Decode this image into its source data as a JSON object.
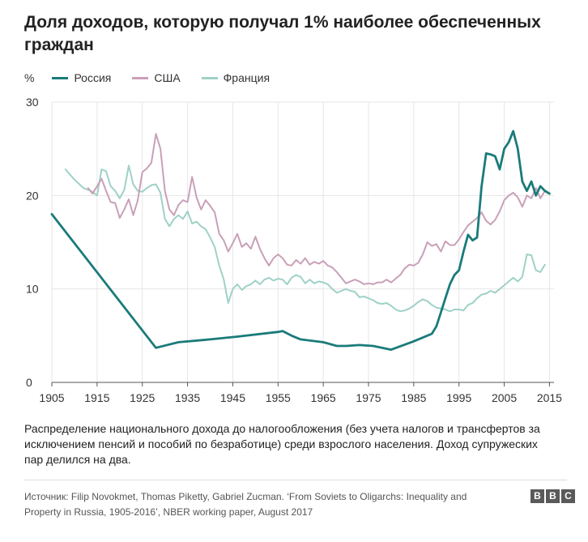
{
  "header": {
    "title": "Доля доходов, которую получал 1% наиболее обеспеченных граждан"
  },
  "chart_data": {
    "type": "line",
    "unit_label": "%",
    "xlim": [
      1905,
      2016
    ],
    "ylim": [
      0,
      30
    ],
    "x_ticks": [
      1905,
      1915,
      1925,
      1935,
      1945,
      1955,
      1965,
      1975,
      1985,
      1995,
      2005,
      2015
    ],
    "y_ticks": [
      0,
      10,
      20,
      30
    ],
    "grid": true,
    "legend_position": "top-left",
    "series": [
      {
        "name": "Россия",
        "color": "#1a7b7a",
        "stroke_width": 2.8,
        "points": [
          [
            1905,
            18.0
          ],
          [
            1928,
            3.7
          ],
          [
            1933,
            4.3
          ],
          [
            1940,
            4.6
          ],
          [
            1946,
            4.9
          ],
          [
            1955,
            5.4
          ],
          [
            1956,
            5.5
          ],
          [
            1958,
            5.0
          ],
          [
            1960,
            4.6
          ],
          [
            1965,
            4.3
          ],
          [
            1968,
            3.9
          ],
          [
            1970,
            3.9
          ],
          [
            1973,
            4.0
          ],
          [
            1976,
            3.9
          ],
          [
            1980,
            3.5
          ],
          [
            1985,
            4.4
          ],
          [
            1988,
            5.0
          ],
          [
            1989,
            5.2
          ],
          [
            1990,
            6.0
          ],
          [
            1991,
            7.5
          ],
          [
            1992,
            9.0
          ],
          [
            1993,
            10.5
          ],
          [
            1994,
            11.5
          ],
          [
            1995,
            12.0
          ],
          [
            1996,
            14.0
          ],
          [
            1997,
            15.8
          ],
          [
            1998,
            15.2
          ],
          [
            1999,
            15.5
          ],
          [
            2000,
            21.0
          ],
          [
            2001,
            24.5
          ],
          [
            2002,
            24.4
          ],
          [
            2003,
            24.2
          ],
          [
            2004,
            22.8
          ],
          [
            2005,
            25.0
          ],
          [
            2006,
            25.7
          ],
          [
            2007,
            26.9
          ],
          [
            2008,
            25.0
          ],
          [
            2009,
            21.5
          ],
          [
            2010,
            20.5
          ],
          [
            2011,
            21.5
          ],
          [
            2012,
            20.0
          ],
          [
            2013,
            21.0
          ],
          [
            2014,
            20.5
          ],
          [
            2015,
            20.2
          ]
        ]
      },
      {
        "name": "США",
        "color": "#c9a0b8",
        "stroke_width": 2.0,
        "points": [
          [
            1913,
            20.8
          ],
          [
            1914,
            20.2
          ],
          [
            1915,
            21.0
          ],
          [
            1916,
            21.8
          ],
          [
            1917,
            20.5
          ],
          [
            1918,
            19.3
          ],
          [
            1919,
            19.2
          ],
          [
            1920,
            17.6
          ],
          [
            1921,
            18.5
          ],
          [
            1922,
            19.6
          ],
          [
            1923,
            17.9
          ],
          [
            1924,
            19.5
          ],
          [
            1925,
            22.5
          ],
          [
            1926,
            22.9
          ],
          [
            1927,
            23.5
          ],
          [
            1928,
            26.6
          ],
          [
            1929,
            25.0
          ],
          [
            1930,
            20.5
          ],
          [
            1931,
            18.5
          ],
          [
            1932,
            17.9
          ],
          [
            1933,
            19.0
          ],
          [
            1934,
            19.5
          ],
          [
            1935,
            19.3
          ],
          [
            1936,
            22.0
          ],
          [
            1937,
            19.8
          ],
          [
            1938,
            18.5
          ],
          [
            1939,
            19.5
          ],
          [
            1940,
            18.9
          ],
          [
            1941,
            18.2
          ],
          [
            1942,
            15.9
          ],
          [
            1943,
            15.2
          ],
          [
            1944,
            14.0
          ],
          [
            1945,
            14.9
          ],
          [
            1946,
            15.9
          ],
          [
            1947,
            14.5
          ],
          [
            1948,
            14.9
          ],
          [
            1949,
            14.3
          ],
          [
            1950,
            15.6
          ],
          [
            1951,
            14.3
          ],
          [
            1952,
            13.3
          ],
          [
            1953,
            12.5
          ],
          [
            1954,
            13.3
          ],
          [
            1955,
            13.7
          ],
          [
            1956,
            13.3
          ],
          [
            1957,
            12.6
          ],
          [
            1958,
            12.5
          ],
          [
            1959,
            13.1
          ],
          [
            1960,
            12.7
          ],
          [
            1961,
            13.3
          ],
          [
            1962,
            12.6
          ],
          [
            1963,
            12.9
          ],
          [
            1964,
            12.7
          ],
          [
            1965,
            13.0
          ],
          [
            1966,
            12.5
          ],
          [
            1967,
            12.3
          ],
          [
            1968,
            11.8
          ],
          [
            1969,
            11.2
          ],
          [
            1970,
            10.6
          ],
          [
            1971,
            10.8
          ],
          [
            1972,
            11.0
          ],
          [
            1973,
            10.8
          ],
          [
            1974,
            10.5
          ],
          [
            1975,
            10.6
          ],
          [
            1976,
            10.5
          ],
          [
            1977,
            10.7
          ],
          [
            1978,
            10.7
          ],
          [
            1979,
            11.0
          ],
          [
            1980,
            10.7
          ],
          [
            1981,
            11.1
          ],
          [
            1982,
            11.5
          ],
          [
            1983,
            12.2
          ],
          [
            1984,
            12.6
          ],
          [
            1985,
            12.5
          ],
          [
            1986,
            12.8
          ],
          [
            1987,
            13.7
          ],
          [
            1988,
            15.0
          ],
          [
            1989,
            14.6
          ],
          [
            1990,
            14.8
          ],
          [
            1991,
            14.0
          ],
          [
            1992,
            15.1
          ],
          [
            1993,
            14.7
          ],
          [
            1994,
            14.7
          ],
          [
            1995,
            15.3
          ],
          [
            1996,
            16.1
          ],
          [
            1997,
            16.8
          ],
          [
            1998,
            17.2
          ],
          [
            1999,
            17.6
          ],
          [
            2000,
            18.2
          ],
          [
            2001,
            17.3
          ],
          [
            2002,
            16.9
          ],
          [
            2003,
            17.4
          ],
          [
            2004,
            18.3
          ],
          [
            2005,
            19.5
          ],
          [
            2006,
            20.0
          ],
          [
            2007,
            20.3
          ],
          [
            2008,
            19.8
          ],
          [
            2009,
            18.8
          ],
          [
            2010,
            20.0
          ],
          [
            2011,
            19.7
          ],
          [
            2012,
            20.8
          ],
          [
            2013,
            19.7
          ],
          [
            2014,
            20.5
          ],
          [
            2015,
            20.2
          ]
        ]
      },
      {
        "name": "Франция",
        "color": "#9fd1c7",
        "stroke_width": 2.0,
        "points": [
          [
            1908,
            22.8
          ],
          [
            1910,
            21.7
          ],
          [
            1912,
            20.8
          ],
          [
            1914,
            20.4
          ],
          [
            1915,
            20.0
          ],
          [
            1916,
            22.8
          ],
          [
            1917,
            22.6
          ],
          [
            1918,
            21.0
          ],
          [
            1919,
            20.5
          ],
          [
            1920,
            19.7
          ],
          [
            1921,
            20.6
          ],
          [
            1922,
            23.2
          ],
          [
            1923,
            21.2
          ],
          [
            1924,
            20.5
          ],
          [
            1925,
            20.4
          ],
          [
            1926,
            20.8
          ],
          [
            1927,
            21.1
          ],
          [
            1928,
            21.2
          ],
          [
            1929,
            20.3
          ],
          [
            1930,
            17.5
          ],
          [
            1931,
            16.7
          ],
          [
            1932,
            17.5
          ],
          [
            1933,
            17.9
          ],
          [
            1934,
            17.5
          ],
          [
            1935,
            18.3
          ],
          [
            1936,
            17.0
          ],
          [
            1937,
            17.2
          ],
          [
            1938,
            16.7
          ],
          [
            1939,
            16.4
          ],
          [
            1940,
            15.5
          ],
          [
            1941,
            14.5
          ],
          [
            1942,
            12.5
          ],
          [
            1943,
            11.0
          ],
          [
            1944,
            8.5
          ],
          [
            1945,
            10.0
          ],
          [
            1946,
            10.5
          ],
          [
            1947,
            9.9
          ],
          [
            1948,
            10.3
          ],
          [
            1949,
            10.5
          ],
          [
            1950,
            10.9
          ],
          [
            1951,
            10.5
          ],
          [
            1952,
            11.0
          ],
          [
            1953,
            11.2
          ],
          [
            1954,
            10.9
          ],
          [
            1955,
            11.1
          ],
          [
            1956,
            11.0
          ],
          [
            1957,
            10.5
          ],
          [
            1958,
            11.2
          ],
          [
            1959,
            11.5
          ],
          [
            1960,
            11.3
          ],
          [
            1961,
            10.6
          ],
          [
            1962,
            11.0
          ],
          [
            1963,
            10.6
          ],
          [
            1964,
            10.8
          ],
          [
            1965,
            10.7
          ],
          [
            1966,
            10.5
          ],
          [
            1967,
            10.0
          ],
          [
            1968,
            9.6
          ],
          [
            1969,
            9.8
          ],
          [
            1970,
            10.0
          ],
          [
            1971,
            9.8
          ],
          [
            1972,
            9.7
          ],
          [
            1973,
            9.1
          ],
          [
            1974,
            9.2
          ],
          [
            1975,
            9.0
          ],
          [
            1976,
            8.8
          ],
          [
            1977,
            8.5
          ],
          [
            1978,
            8.4
          ],
          [
            1979,
            8.5
          ],
          [
            1980,
            8.2
          ],
          [
            1981,
            7.8
          ],
          [
            1982,
            7.6
          ],
          [
            1983,
            7.7
          ],
          [
            1984,
            7.9
          ],
          [
            1985,
            8.2
          ],
          [
            1986,
            8.6
          ],
          [
            1987,
            8.9
          ],
          [
            1988,
            8.7
          ],
          [
            1989,
            8.3
          ],
          [
            1990,
            8.0
          ],
          [
            1991,
            7.9
          ],
          [
            1992,
            7.8
          ],
          [
            1993,
            7.6
          ],
          [
            1994,
            7.8
          ],
          [
            1995,
            7.8
          ],
          [
            1996,
            7.7
          ],
          [
            1997,
            8.3
          ],
          [
            1998,
            8.5
          ],
          [
            1999,
            9.0
          ],
          [
            2000,
            9.4
          ],
          [
            2001,
            9.5
          ],
          [
            2002,
            9.8
          ],
          [
            2003,
            9.6
          ],
          [
            2004,
            10.0
          ],
          [
            2005,
            10.4
          ],
          [
            2006,
            10.8
          ],
          [
            2007,
            11.2
          ],
          [
            2008,
            10.8
          ],
          [
            2009,
            11.3
          ],
          [
            2010,
            13.7
          ],
          [
            2011,
            13.6
          ],
          [
            2012,
            12.0
          ],
          [
            2013,
            11.8
          ],
          [
            2014,
            12.6
          ]
        ]
      }
    ]
  },
  "description": "Распределение национального дохода до налогообложения (без учета налогов и трансфертов за исключением пенсий и пособий по безработице) среди взрослого населения. Доход супружеских пар делился на два.",
  "footer": {
    "source": "Источник: Filip Novokmet, Thomas Piketty, Gabriel Zucman. ‘From Soviets to Oligarchs: Inequality and Property in Russia, 1905-2016’, NBER working paper, August 2017",
    "logo_letters": [
      "B",
      "B",
      "C"
    ]
  }
}
